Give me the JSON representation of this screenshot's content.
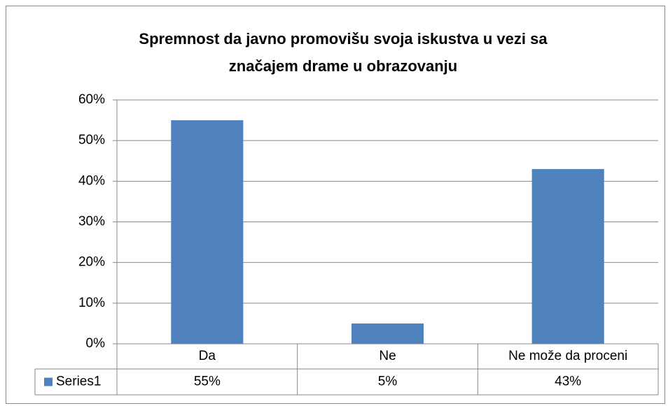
{
  "chart_data": {
    "type": "bar",
    "title": "Spremnost da javno promovišu svoja iskustva u vezi sa značajem drame u obrazovanju",
    "categories": [
      "Da",
      "Ne",
      "Ne može da proceni"
    ],
    "series": [
      {
        "name": "Series1",
        "color": "#4f81bd",
        "values": [
          55,
          5,
          43
        ],
        "value_labels": [
          "55%",
          "5%",
          "43%"
        ]
      }
    ],
    "ylim": [
      0,
      60
    ],
    "yticks": [
      {
        "value": 0,
        "label": "0%"
      },
      {
        "value": 10,
        "label": "10%"
      },
      {
        "value": 20,
        "label": "20%"
      },
      {
        "value": 30,
        "label": "30%"
      },
      {
        "value": 40,
        "label": "40%"
      },
      {
        "value": 50,
        "label": "50%"
      },
      {
        "value": 60,
        "label": "60%"
      }
    ],
    "grid": true,
    "data_table": true
  }
}
